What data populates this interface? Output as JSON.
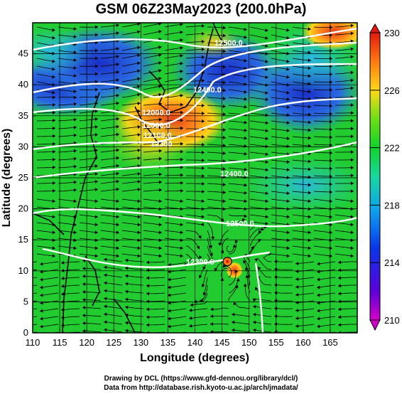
{
  "title": "GSM 06Z23May2023 (200.0hPa)",
  "xlabel": "Longitude (degrees)",
  "ylabel": "Latitude (degrees)",
  "x_ticks": [
    110,
    115,
    120,
    125,
    130,
    135,
    140,
    145,
    150,
    155,
    160,
    165
  ],
  "y_ticks": [
    0,
    5,
    10,
    15,
    20,
    25,
    30,
    35,
    40,
    45
  ],
  "colorbar_ticks": [
    210,
    214,
    218,
    222,
    226,
    230
  ],
  "contour_labels": [
    "12000.0",
    "12000.0",
    "12100.0",
    "12300",
    "12400.0",
    "12500.0",
    "12300.0",
    "12500.0",
    "12400.0"
  ],
  "credit_line1": "Drawing by DCL (https://www.gfd-dennou.org/library/dcl/)",
  "credit_line2": "Data from http://database.rish.kyoto-u.ac.jp/arch/jmadata/",
  "colors": {
    "cold": "#1a2fc8",
    "cool": "#2a8fe0",
    "mid": "#1fd14a",
    "warm": "#ffd21a",
    "hot": "#e33c1a",
    "contour": "#ffffff",
    "streamline": "#000000"
  },
  "map_data": {
    "type": "streamline-map",
    "shaded_variable_range": [
      210,
      230
    ],
    "lon_range": [
      110,
      170
    ],
    "lat_range": [
      0,
      50
    ],
    "contour_lines": [
      "12000",
      "12100",
      "12200",
      "12300",
      "12400",
      "12500"
    ],
    "cyclone_center": [
      146,
      11.5
    ]
  }
}
